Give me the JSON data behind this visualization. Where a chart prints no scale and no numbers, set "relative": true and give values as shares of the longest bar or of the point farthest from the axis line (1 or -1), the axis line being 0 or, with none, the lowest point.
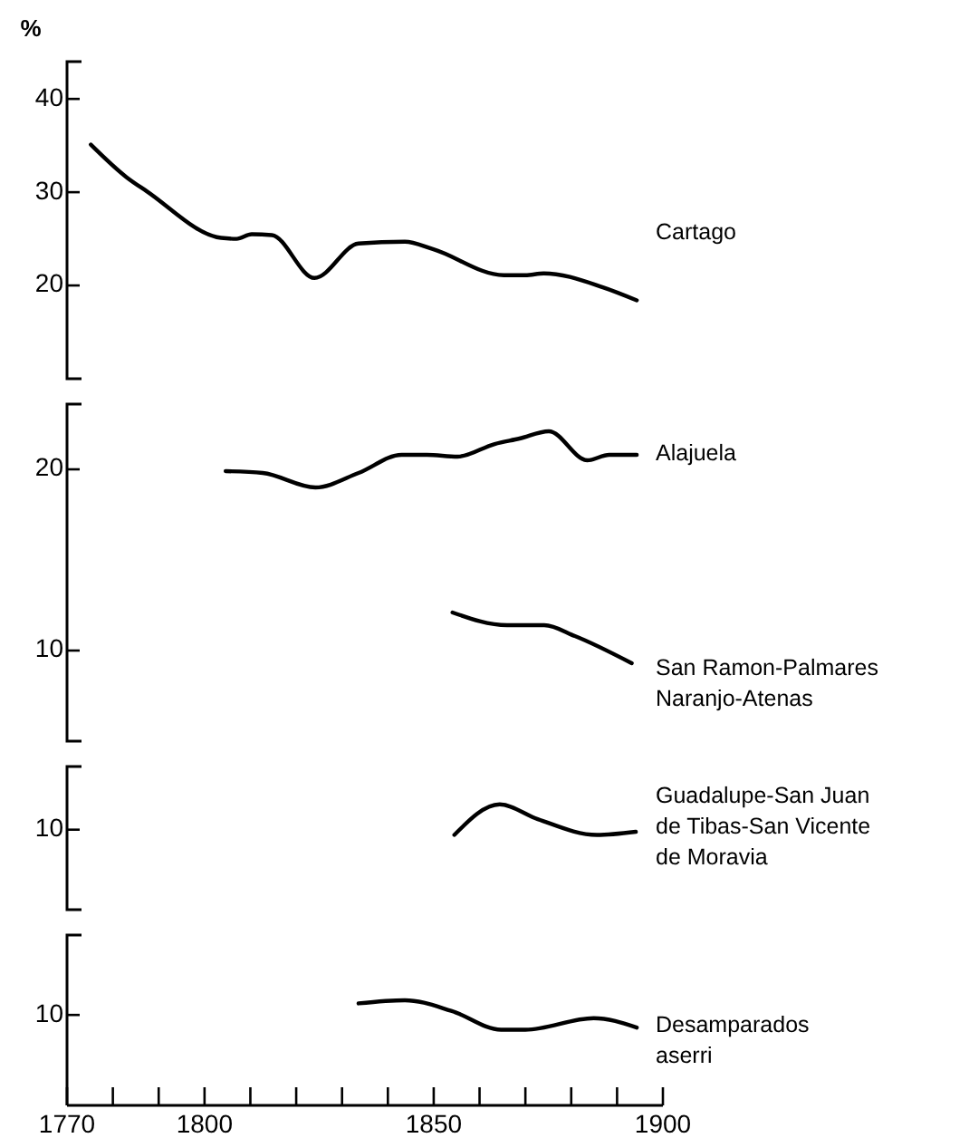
{
  "chart_data": [
    {
      "type": "line",
      "ylabel": "%",
      "xlim": [
        1770,
        1900
      ],
      "ylim": [
        10,
        44
      ],
      "yticks": [
        20,
        30,
        40
      ],
      "tick_labels": "y",
      "legend": false,
      "grid": false,
      "marker": "none",
      "line_style": "solid",
      "series": [
        {
          "name": "Cartago",
          "color": "#000000",
          "x": [
            1775.2,
            1783,
            1787.4,
            1803.6,
            1807,
            1810.3,
            1814.7,
            1824,
            1833.6,
            1843.7,
            1849.8,
            1865.3,
            1870,
            1874,
            1886.9,
            1894.3
          ],
          "values": [
            35.1,
            31.6,
            30.1,
            25.1,
            25.0,
            25.5,
            25.4,
            20.8,
            24.5,
            24.7,
            23.9,
            21.1,
            21.1,
            21.3,
            19.8,
            18.4
          ]
        }
      ]
    },
    {
      "type": "line",
      "xlim": [
        1770,
        1900
      ],
      "ylim": [
        5,
        23.6
      ],
      "yticks": [
        10,
        20
      ],
      "tick_labels": "y",
      "legend": false,
      "grid": false,
      "marker": "none",
      "line_style": "solid",
      "series": [
        {
          "name": "Alajuela",
          "color": "#000000",
          "x": [
            1804.6,
            1812.7,
            1824.2,
            1833.6,
            1843,
            1848.5,
            1855.2,
            1863.3,
            1868.7,
            1875.1,
            1883.5,
            1888.3,
            1894.3
          ],
          "values": [
            19.9,
            19.8,
            19.0,
            19.8,
            20.8,
            20.8,
            20.7,
            21.4,
            21.7,
            22.1,
            20.5,
            20.8,
            20.8
          ]
        },
        {
          "name": "San Ramon-Palmares\nNaranjo-Atenas",
          "color": "#000000",
          "x": [
            1854.1,
            1866,
            1874.1,
            1880.8,
            1893.2
          ],
          "values": [
            12.1,
            11.4,
            11.4,
            10.8,
            9.3
          ]
        }
      ]
    },
    {
      "type": "line",
      "relative": true,
      "xlim": [
        1770,
        1900
      ],
      "annotations": [
        "10"
      ],
      "tick_labels": "y",
      "legend": false,
      "grid": false,
      "marker": "none",
      "line_style": "solid",
      "series": [
        {
          "name": "Guadalupe-San Juan\nde Tibas-San Vicente\nde Moravia",
          "color": "#000000",
          "x": [
            1854.5,
            1864.4,
            1872.7,
            1885.6,
            1894.1
          ],
          "values": [
            0.71,
            1,
            0.86,
            0.71,
            0.74
          ]
        }
      ]
    },
    {
      "type": "line",
      "relative": true,
      "xlim": [
        1770,
        1900
      ],
      "annotations": [
        "10"
      ],
      "xticks": [
        1770,
        {
          "value": 1780,
          "label": null
        },
        {
          "value": 1790,
          "label": null
        },
        1800,
        {
          "value": 1810,
          "label": null
        },
        {
          "value": 1820,
          "label": null
        },
        {
          "value": 1830,
          "label": null
        },
        {
          "value": 1840,
          "label": null
        },
        1850,
        {
          "value": 1860,
          "label": null
        },
        {
          "value": 1870,
          "label": null
        },
        {
          "value": 1880,
          "label": null
        },
        {
          "value": 1890,
          "label": null
        },
        1900
      ],
      "legend": false,
      "grid": false,
      "marker": "none",
      "line_style": "solid",
      "series": [
        {
          "name": "Desamparados\naserri",
          "color": "#000000",
          "x": [
            1833.6,
            1843.7,
            1853.8,
            1864.7,
            1870,
            1884.9,
            1894.3
          ],
          "values": [
            0.97,
            1,
            0.9,
            0.72,
            0.72,
            0.83,
            0.74
          ]
        }
      ]
    }
  ]
}
